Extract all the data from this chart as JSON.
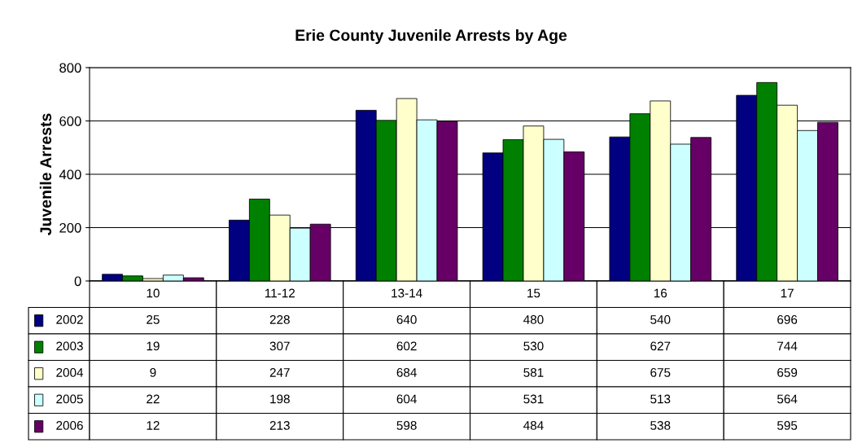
{
  "chart_data": {
    "type": "bar",
    "title": "Erie County Juvenile Arrests by Age",
    "ylabel": "Juvenile Arrests",
    "categories": [
      "10",
      "11-12",
      "13-14",
      "15",
      "16",
      "17"
    ],
    "series": [
      {
        "name": "2002",
        "color": "#000080",
        "values": [
          25,
          228,
          640,
          480,
          540,
          696
        ]
      },
      {
        "name": "2003",
        "color": "#008000",
        "values": [
          19,
          307,
          602,
          530,
          627,
          744
        ]
      },
      {
        "name": "2004",
        "color": "#ffffcc",
        "values": [
          9,
          247,
          684,
          581,
          675,
          659
        ]
      },
      {
        "name": "2005",
        "color": "#ccffff",
        "values": [
          22,
          198,
          604,
          531,
          513,
          564
        ]
      },
      {
        "name": "2006",
        "color": "#660066",
        "values": [
          12,
          213,
          598,
          484,
          538,
          595
        ]
      }
    ],
    "ylim": [
      0,
      800
    ],
    "yticks": [
      0,
      200,
      400,
      600,
      800
    ],
    "grid": "y",
    "legend": "bottom left",
    "data_labels": true
  }
}
